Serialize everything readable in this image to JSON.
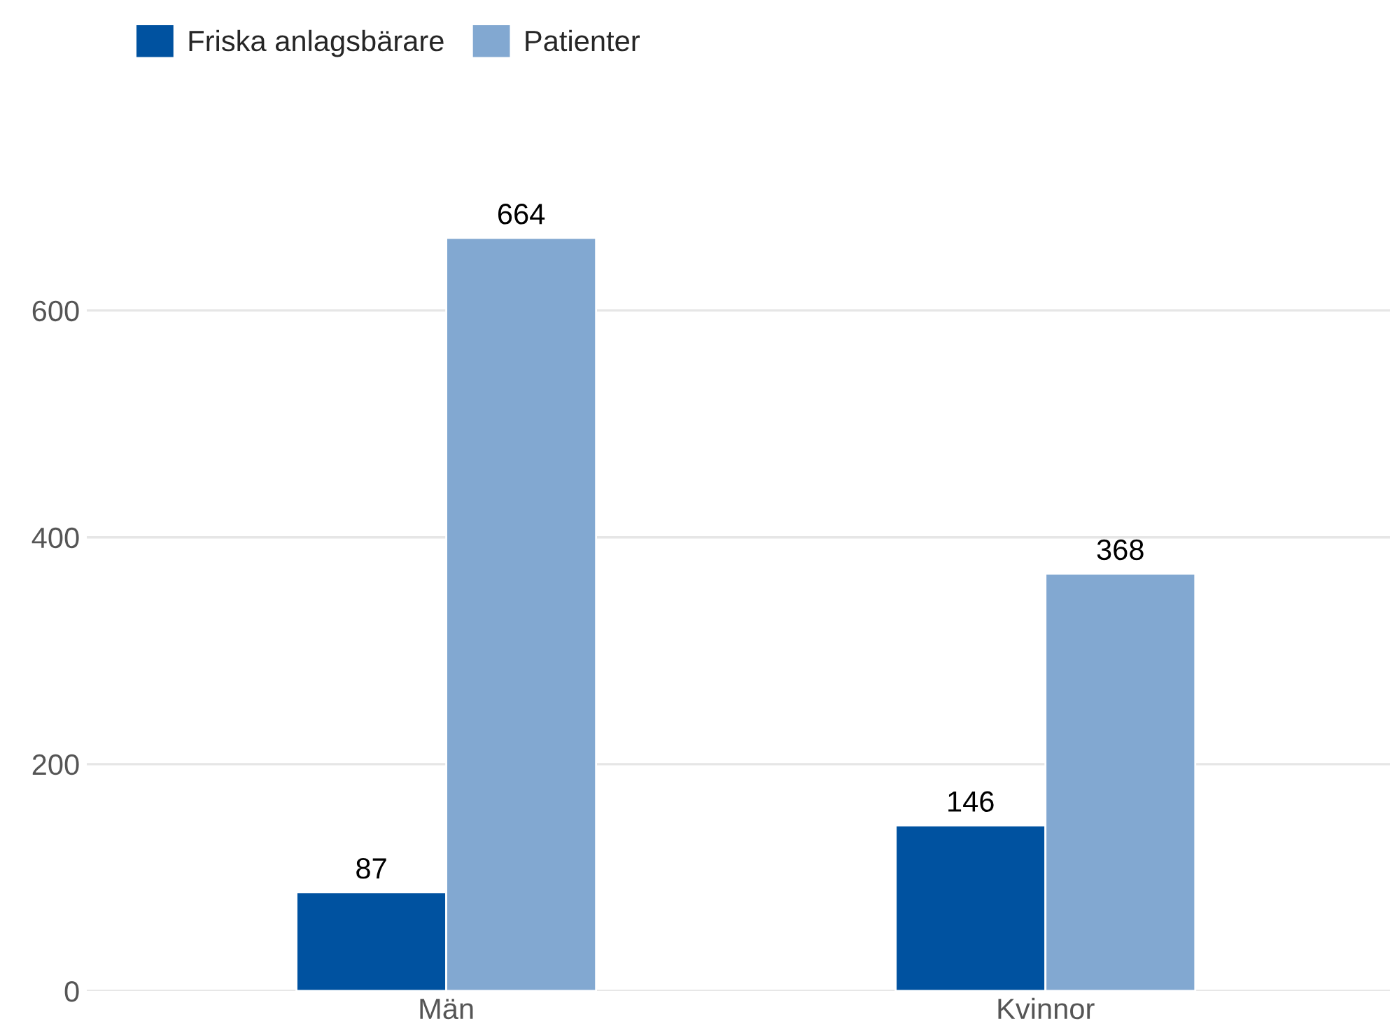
{
  "chart_data": {
    "type": "bar",
    "categories": [
      "Män",
      "Kvinnor"
    ],
    "series": [
      {
        "name": "Friska anlagsbärare",
        "color": "#0052a0",
        "values": [
          87,
          146
        ]
      },
      {
        "name": "Patienter",
        "color": "#82a8d1",
        "values": [
          664,
          368
        ]
      }
    ],
    "ylim": [
      0,
      664
    ],
    "yticks": [
      0,
      200,
      400,
      600
    ],
    "grid": "y",
    "legend": "top left",
    "data_labels": true
  }
}
